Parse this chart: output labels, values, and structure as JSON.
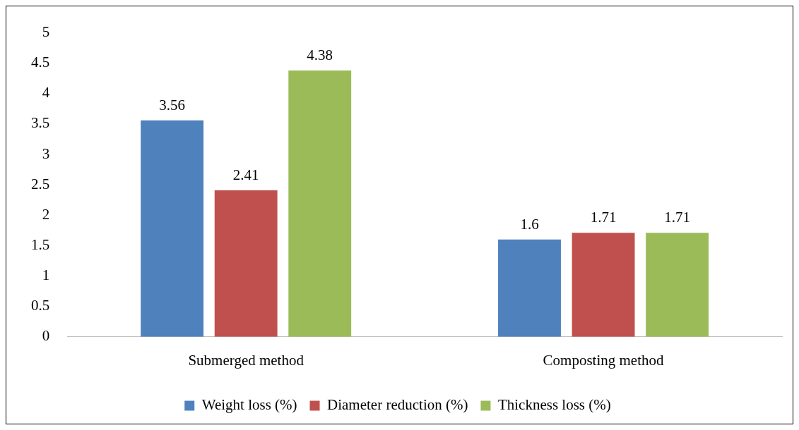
{
  "chart_data": {
    "type": "bar",
    "categories": [
      "Submerged method",
      "Composting method"
    ],
    "series": [
      {
        "name": "Weight loss (%)",
        "color": "#4f81bd",
        "values": [
          3.56,
          1.6
        ]
      },
      {
        "name": "Diameter reduction (%)",
        "color": "#c0504d",
        "values": [
          2.41,
          1.71
        ]
      },
      {
        "name": "Thickness loss (%)",
        "color": "#9bbb59",
        "values": [
          4.38,
          1.71
        ]
      }
    ],
    "ylim": [
      0,
      5
    ],
    "yticks": [
      0,
      0.5,
      1,
      1.5,
      2,
      2.5,
      3,
      3.5,
      4,
      4.5,
      5
    ],
    "grid": false,
    "legend": "bottom",
    "data_labels": true
  }
}
